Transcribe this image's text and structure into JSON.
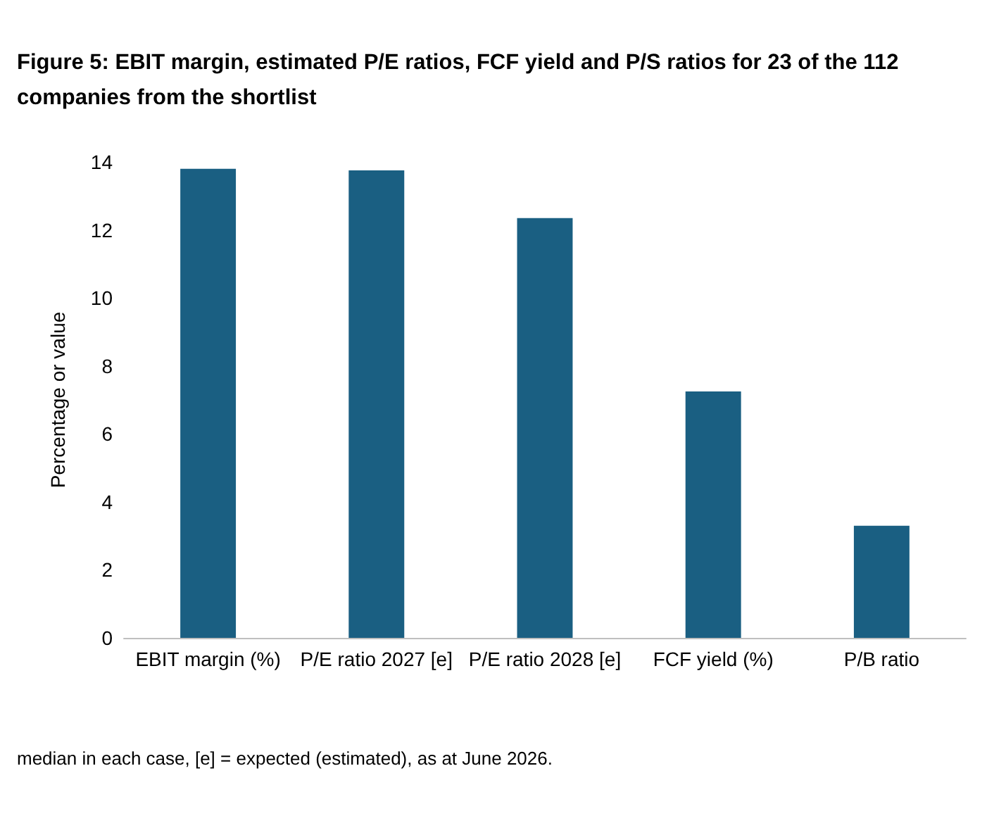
{
  "chart_data": {
    "type": "bar",
    "title": "Figure 5: EBIT margin, estimated P/E ratios, FCF yield and P/S ratios for 23 of the 112 companies from the shortlist",
    "ylabel": "Percentage or value",
    "categories": [
      "EBIT margin (%)",
      "P/E ratio 2027 [e]",
      "P/E ratio 2028 [e]",
      "FCF yield (%)",
      "P/B ratio"
    ],
    "values": [
      13.8,
      13.75,
      12.35,
      7.25,
      3.3
    ],
    "color": "#1a5f82",
    "ylim": [
      0,
      14
    ],
    "yticks": [
      0,
      2,
      4,
      6,
      8,
      10,
      12,
      14
    ],
    "grid": false,
    "annotations": [
      "median in each case, [e] = expected (estimated), as at June 2026."
    ]
  }
}
